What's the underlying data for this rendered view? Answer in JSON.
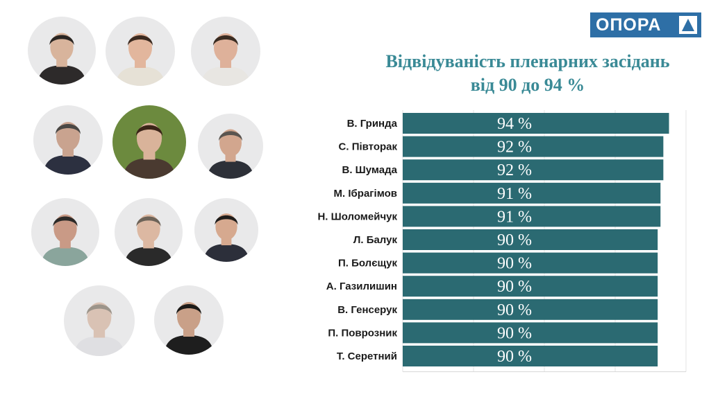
{
  "logo": {
    "text": "ОПОРА",
    "icon": "triangle-icon"
  },
  "title_line1": "Відвідуваність пленарних засідань",
  "title_line2": "від  90 до 94 %",
  "photos": [
    {
      "icon": "person-photo"
    },
    {
      "icon": "person-photo"
    },
    {
      "icon": "person-photo"
    },
    {
      "icon": "person-photo"
    },
    {
      "icon": "person-photo"
    },
    {
      "icon": "person-photo"
    },
    {
      "icon": "person-photo"
    },
    {
      "icon": "person-photo"
    },
    {
      "icon": "person-photo"
    },
    {
      "icon": "person-photo"
    },
    {
      "icon": "person-photo"
    }
  ],
  "colors": {
    "bar": "#2b6a72",
    "title": "#3a8a96",
    "logo": "#2e6fa6"
  },
  "chart_data": {
    "type": "bar",
    "orientation": "horizontal",
    "title": "Відвідуваність пленарних засідань від  90 до 94 %",
    "categories": [
      "В. Гринда",
      "С. Півторак",
      "В. Шумада",
      "М. Ібрагімов",
      "Н. Шоломейчук",
      "Л. Балук",
      "П. Болєщук",
      "А. Газилишин",
      "В. Генсерук",
      "П. Поврозник",
      "Т. Серетний"
    ],
    "values": [
      94,
      92,
      92,
      91,
      91,
      90,
      90,
      90,
      90,
      90,
      90
    ],
    "value_labels": [
      "94 %",
      "92 %",
      "92 %",
      "91 %",
      "91 %",
      "90 %",
      "90 %",
      "90 %",
      "90 %",
      "90 %",
      "90 %"
    ],
    "xlim": [
      0,
      100
    ],
    "grid": true
  }
}
